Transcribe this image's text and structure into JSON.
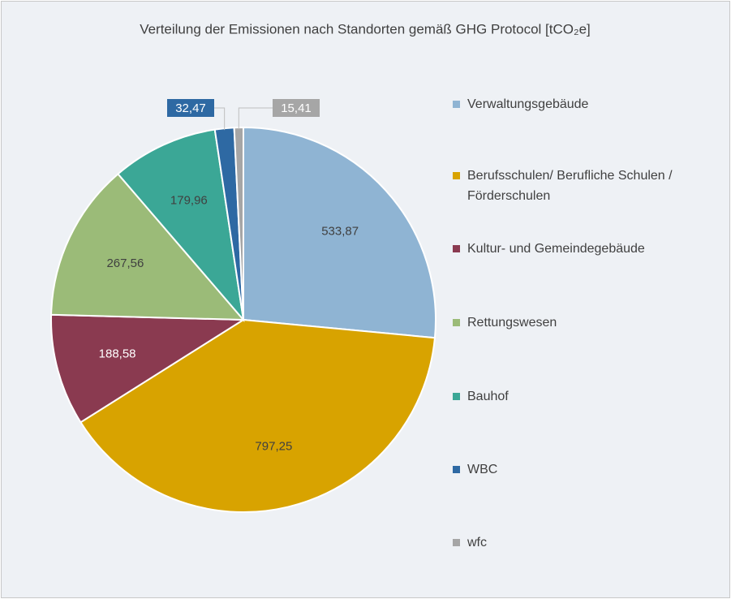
{
  "chart_data": {
    "type": "pie",
    "title": "Verteilung der Emissionen nach Standorten gemäß GHG Protocol [tCO₂e]",
    "categories": [
      "Verwaltungsgebäude",
      "Berufsschulen/ Berufliche Schulen / Förderschulen",
      "Kultur- und Gemeindegebäude",
      "Rettungswesen",
      "Bauhof",
      "WBC",
      "wfc"
    ],
    "values": [
      533.87,
      797.25,
      188.58,
      267.56,
      179.96,
      32.47,
      15.41
    ],
    "value_labels": [
      "533,87",
      "797,25",
      "188,58",
      "267,56",
      "179,96",
      "32,47",
      "15,41"
    ],
    "colors": [
      "#8fb4d3",
      "#d8a300",
      "#8a3a50",
      "#9bbb78",
      "#3ba796",
      "#2e69a3",
      "#a6a6a6"
    ],
    "legend": "right"
  }
}
